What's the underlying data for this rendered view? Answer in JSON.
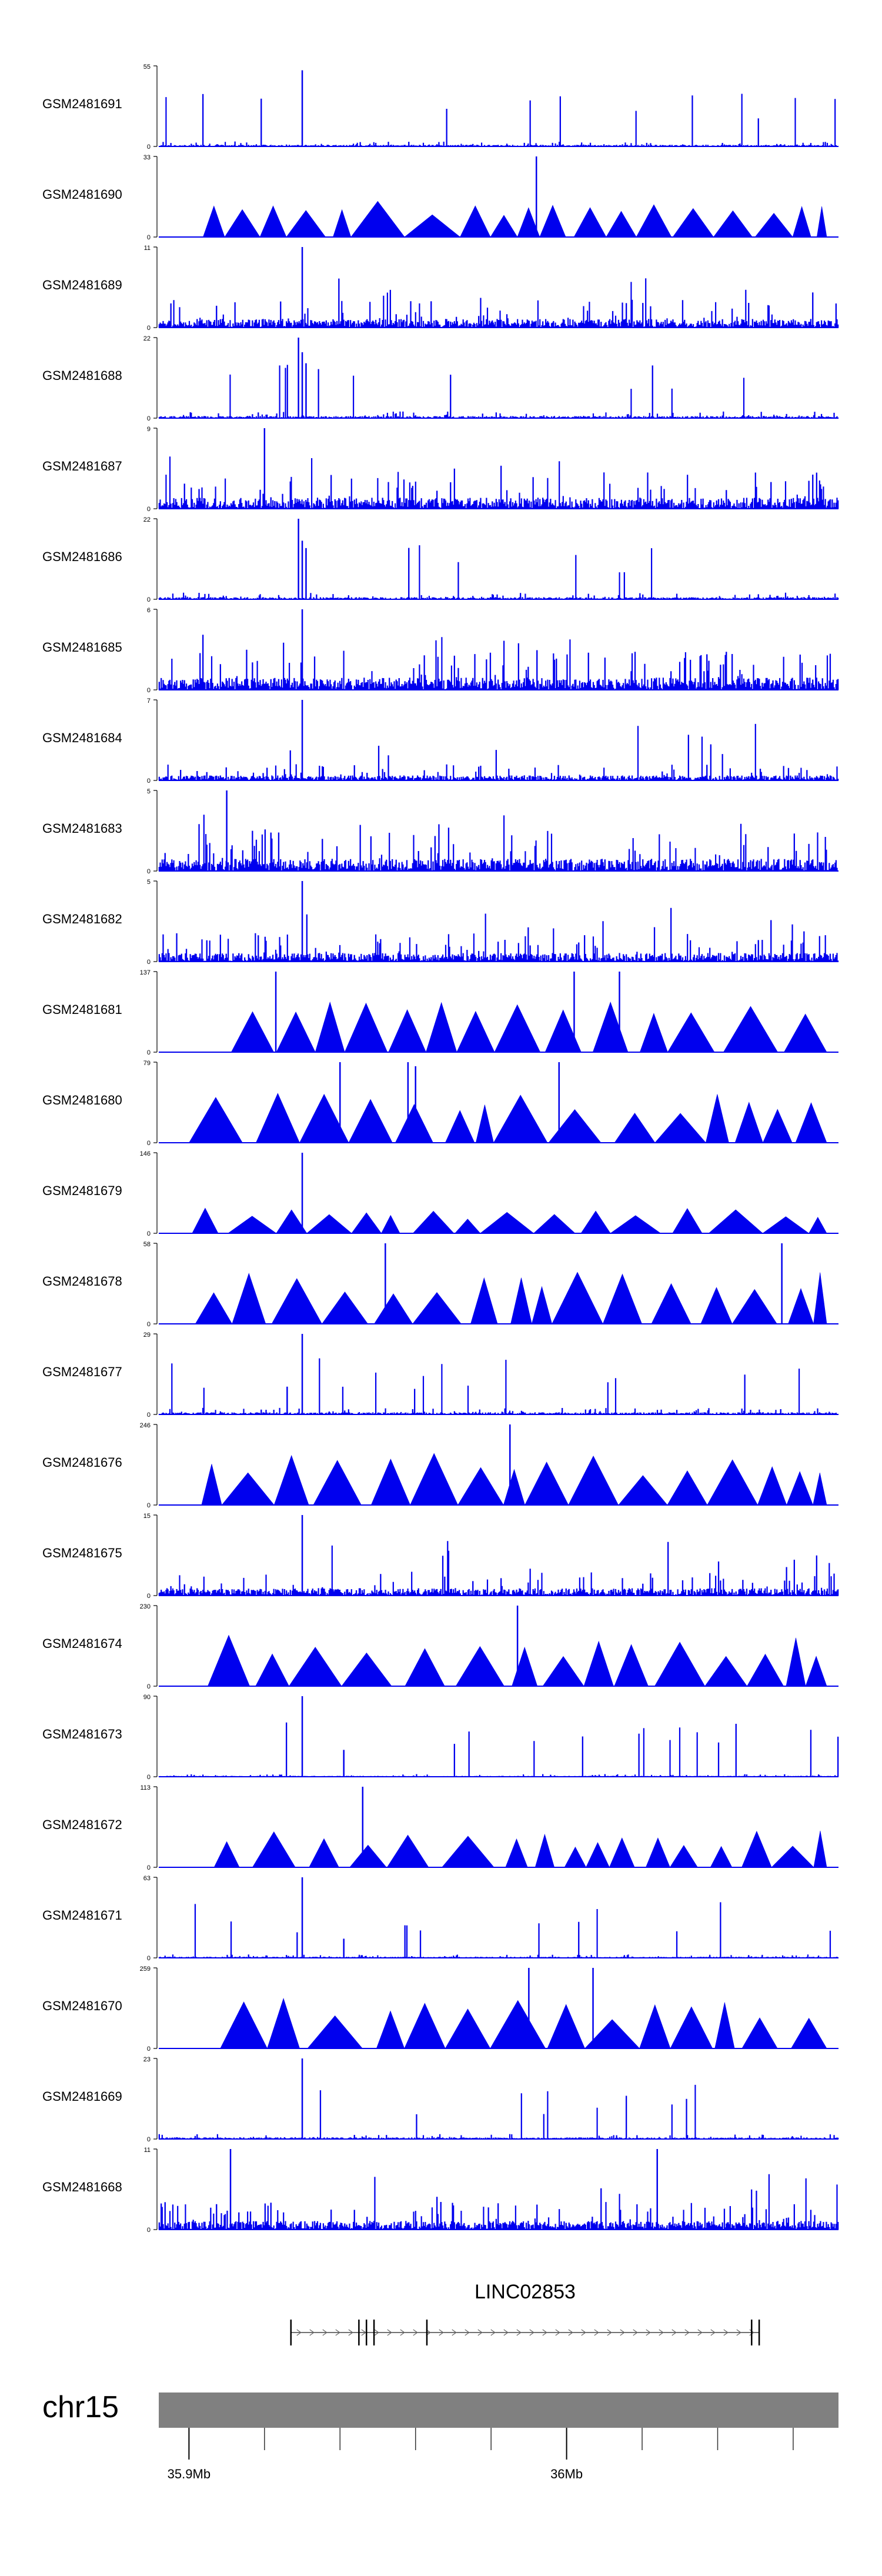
{
  "chart_data": {
    "type": "area",
    "colors": {
      "signal": "#0000ee",
      "ideogram": "#808080",
      "axis": "#000000"
    },
    "tracks": [
      {
        "name": "GSM2481691",
        "ymax": "55",
        "style": "dense",
        "peaks": [
          [
            35.93,
            52
          ]
        ],
        "level": 0.06
      },
      {
        "name": "GSM2481690",
        "ymax": "33",
        "style": "sparse",
        "peaks": [
          [
            35.992,
            33
          ]
        ],
        "level": 0.35
      },
      {
        "name": "GSM2481689",
        "ymax": "11",
        "style": "dense",
        "peaks": [
          [
            35.93,
            11
          ]
        ],
        "level": 0.35
      },
      {
        "name": "GSM2481688",
        "ymax": "22",
        "style": "dense",
        "peaks": [
          [
            35.929,
            22
          ],
          [
            35.93,
            18
          ],
          [
            35.931,
            15
          ]
        ],
        "level": 0.08
      },
      {
        "name": "GSM2481687",
        "ymax": "9",
        "style": "dense",
        "peaks": [
          [
            35.92,
            9
          ]
        ],
        "level": 0.45
      },
      {
        "name": "GSM2481686",
        "ymax": "22",
        "style": "dense",
        "peaks": [
          [
            35.929,
            22
          ],
          [
            35.93,
            16
          ],
          [
            35.931,
            14
          ]
        ],
        "level": 0.08
      },
      {
        "name": "GSM2481685",
        "ymax": "6",
        "style": "dense",
        "peaks": [
          [
            35.93,
            6
          ]
        ],
        "level": 0.5
      },
      {
        "name": "GSM2481684",
        "ymax": "7",
        "style": "dense",
        "peaks": [
          [
            35.93,
            7
          ]
        ],
        "level": 0.2
      },
      {
        "name": "GSM2481683",
        "ymax": "5",
        "style": "dense",
        "peaks": [
          [
            35.91,
            5
          ]
        ],
        "level": 0.5
      },
      {
        "name": "GSM2481682",
        "ymax": "5",
        "style": "dense",
        "peaks": [
          [
            35.93,
            5
          ]
        ],
        "level": 0.35
      },
      {
        "name": "GSM2481681",
        "ymax": "137",
        "style": "sparse",
        "peaks": [
          [
            35.923,
            137
          ],
          [
            36.002,
            137
          ],
          [
            36.014,
            137
          ]
        ],
        "level": 0.5
      },
      {
        "name": "GSM2481680",
        "ymax": "79",
        "style": "sparse",
        "peaks": [
          [
            35.94,
            79
          ],
          [
            35.958,
            79
          ],
          [
            35.96,
            75
          ],
          [
            35.998,
            79
          ]
        ],
        "level": 0.5
      },
      {
        "name": "GSM2481679",
        "ymax": "146",
        "style": "sparse",
        "peaks": [
          [
            35.93,
            146
          ]
        ],
        "level": 0.25
      },
      {
        "name": "GSM2481678",
        "ymax": "58",
        "style": "sparse",
        "peaks": [
          [
            35.952,
            58
          ],
          [
            36.057,
            58
          ]
        ],
        "level": 0.5
      },
      {
        "name": "GSM2481677",
        "ymax": "29",
        "style": "dense",
        "peaks": [
          [
            35.93,
            29
          ],
          [
            35.926,
            10
          ]
        ],
        "level": 0.08
      },
      {
        "name": "GSM2481676",
        "ymax": "246",
        "style": "sparse",
        "peaks": [
          [
            35.985,
            246
          ]
        ],
        "level": 0.5
      },
      {
        "name": "GSM2481675",
        "ymax": "15",
        "style": "dense",
        "peaks": [
          [
            35.93,
            15
          ]
        ],
        "level": 0.3
      },
      {
        "name": "GSM2481674",
        "ymax": "230",
        "style": "sparse",
        "peaks": [
          [
            35.987,
            230
          ]
        ],
        "level": 0.5
      },
      {
        "name": "GSM2481673",
        "ymax": "90",
        "style": "dense",
        "peaks": [
          [
            35.93,
            90
          ],
          [
            35.941,
            30
          ]
        ],
        "level": 0.03
      },
      {
        "name": "GSM2481672",
        "ymax": "113",
        "style": "sparse",
        "peaks": [
          [
            35.946,
            113
          ]
        ],
        "level": 0.35
      },
      {
        "name": "GSM2481671",
        "ymax": "63",
        "style": "dense",
        "peaks": [
          [
            35.93,
            63
          ],
          [
            35.941,
            15
          ]
        ],
        "level": 0.04
      },
      {
        "name": "GSM2481670",
        "ymax": "259",
        "style": "sparse",
        "peaks": [
          [
            35.99,
            259
          ],
          [
            36.007,
            259
          ]
        ],
        "level": 0.5
      },
      {
        "name": "GSM2481669",
        "ymax": "23",
        "style": "dense",
        "peaks": [
          [
            35.93,
            23
          ]
        ],
        "level": 0.06
      },
      {
        "name": "GSM2481668",
        "ymax": "11",
        "style": "dense",
        "peaks": [
          [
            35.911,
            11
          ],
          [
            36.024,
            11
          ]
        ],
        "level": 0.35
      }
    ],
    "gene": {
      "label": "LINC02853",
      "start": 35.927,
      "end": 36.051,
      "strand": "+",
      "exons": [
        35.927,
        35.945,
        35.947,
        35.949,
        35.963,
        36.049,
        36.051
      ]
    },
    "axis": {
      "chromosome": "chr15",
      "range": [
        35.892,
        36.072
      ],
      "ticks": [
        35.9,
        35.92,
        35.94,
        35.96,
        35.98,
        36.0,
        36.02,
        36.04,
        36.06
      ],
      "tick_labels": [
        {
          "value": 35.9,
          "label": "35.9Mb"
        },
        {
          "value": 36.0,
          "label": "36Mb"
        }
      ]
    }
  }
}
